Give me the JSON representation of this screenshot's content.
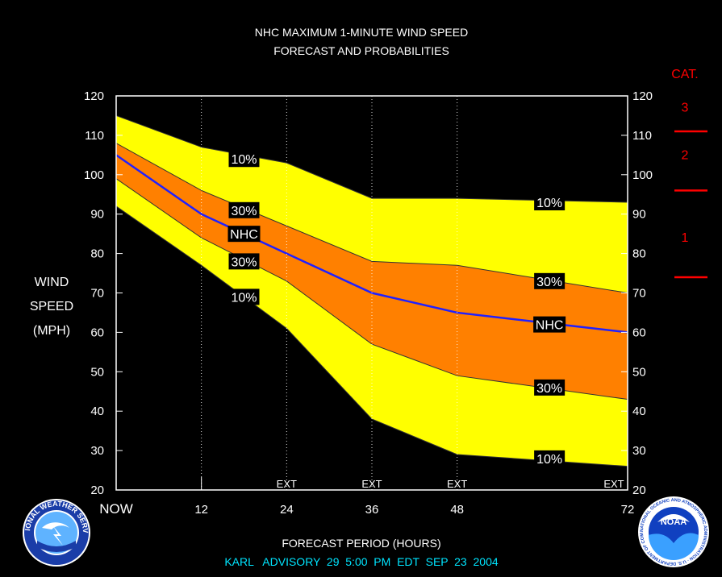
{
  "chart_data": {
    "type": "area",
    "title": "NHC MAXIMUM 1-MINUTE WIND SPEED",
    "subtitle": "FORECAST AND PROBABILITIES",
    "ylabel": [
      "WIND",
      "SPEED",
      "(MPH)"
    ],
    "xlabel": "FORECAST PERIOD (HOURS)",
    "footer": "KARL   ADVISORY  29  5:00  PM  EDT  SEP  23  2004",
    "ylim": [
      20,
      120
    ],
    "yticks": [
      20,
      30,
      40,
      50,
      60,
      70,
      80,
      90,
      100,
      110,
      120
    ],
    "xlim": [
      0,
      72
    ],
    "xticks": [
      {
        "x": 0,
        "label": "NOW"
      },
      {
        "x": 12,
        "label": "12"
      },
      {
        "x": 24,
        "label": "24"
      },
      {
        "x": 36,
        "label": "36"
      },
      {
        "x": 48,
        "label": "48"
      },
      {
        "x": 72,
        "label": "72"
      }
    ],
    "ext_marks": [
      {
        "x": 24,
        "label": "EXT"
      },
      {
        "x": 36,
        "label": "EXT"
      },
      {
        "x": 48,
        "label": "EXT"
      },
      {
        "x": 72,
        "label": "EXT"
      }
    ],
    "dotted_lines_x": [
      12,
      24,
      36,
      48
    ],
    "x": [
      0,
      12,
      24,
      36,
      48,
      72
    ],
    "series": [
      {
        "name": "10%",
        "role": "upper-10",
        "values": [
          115,
          107,
          103,
          94,
          94,
          93
        ]
      },
      {
        "name": "30%",
        "role": "upper-30",
        "values": [
          108,
          96,
          87,
          78,
          77,
          70
        ]
      },
      {
        "name": "NHC",
        "role": "forecast",
        "values": [
          105,
          90,
          80,
          70,
          65,
          60
        ]
      },
      {
        "name": "30%",
        "role": "lower-30",
        "values": [
          99,
          84,
          73,
          57,
          49,
          43
        ]
      },
      {
        "name": "10%",
        "role": "lower-10",
        "values": [
          92,
          77,
          61,
          38,
          29,
          26
        ]
      }
    ],
    "band_labels": [
      {
        "text": "10%",
        "x": 18,
        "y": 104
      },
      {
        "text": "30%",
        "x": 18,
        "y": 91
      },
      {
        "text": "NHC",
        "x": 18,
        "y": 85
      },
      {
        "text": "30%",
        "x": 18,
        "y": 78
      },
      {
        "text": "10%",
        "x": 18,
        "y": 69
      },
      {
        "text": "10%",
        "x": 61,
        "y": 93
      },
      {
        "text": "30%",
        "x": 61,
        "y": 73
      },
      {
        "text": "NHC",
        "x": 61,
        "y": 62
      },
      {
        "text": "30%",
        "x": 61,
        "y": 46
      },
      {
        "text": "10%",
        "x": 61,
        "y": 28
      }
    ],
    "category_header": "CAT.",
    "categories": [
      {
        "label": "3",
        "y": 117
      },
      {
        "label": "2",
        "y": 105
      },
      {
        "label": "1",
        "y": 84
      }
    ],
    "category_thresholds": [
      111,
      96,
      74
    ],
    "colors": {
      "outer_band": "#ffff00",
      "inner_band": "#ff8000",
      "forecast_line": "#2020ff",
      "background": "#000000",
      "category": "#ff0000",
      "footer": "#00e5ff"
    },
    "legend": "none",
    "grid": false
  },
  "logos": {
    "left": {
      "name": "National Weather Service",
      "text": "NATIONAL WEATHER SERVICE"
    },
    "right": {
      "name": "NOAA",
      "text": "NOAA",
      "ring_text": "NATIONAL OCEANIC AND ATMOSPHERIC ADMINISTRATION · U.S. DEPARTMENT OF COMMERCE"
    }
  }
}
